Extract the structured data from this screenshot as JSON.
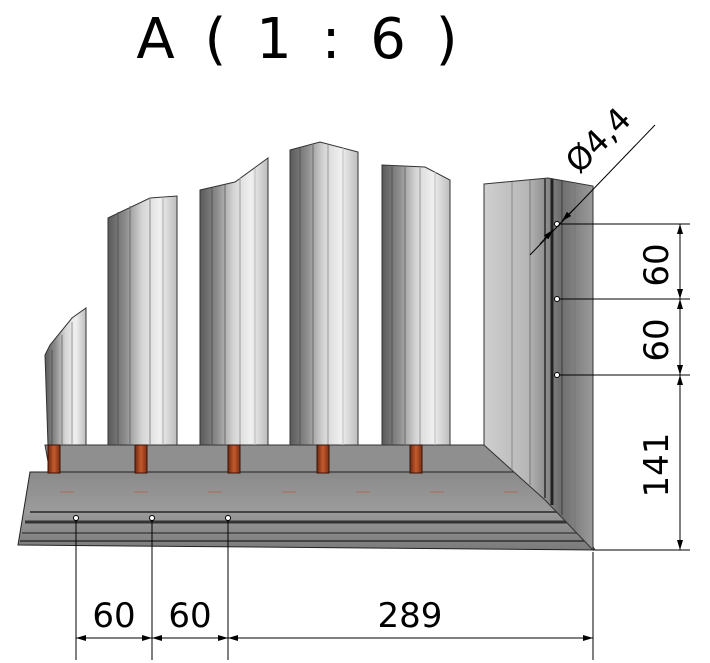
{
  "title": "A ( 1 : 6 )",
  "dimensions": {
    "hole_diameter": "Ø4,4",
    "vertical": [
      "60",
      "60",
      "141"
    ],
    "horizontal": [
      "60",
      "60",
      "289"
    ]
  }
}
